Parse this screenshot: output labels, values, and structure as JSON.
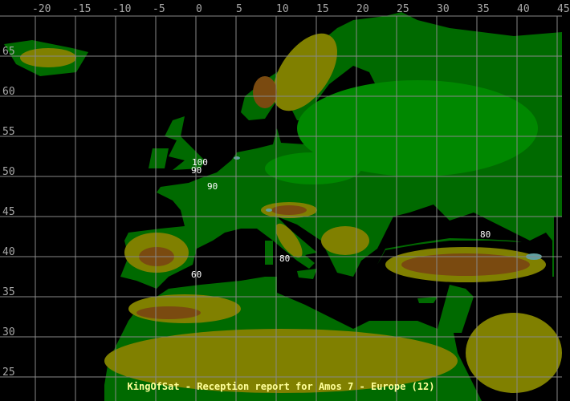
{
  "title": "KingOfSat - Reception report for Amos 7 - Europe (12)",
  "longitude_labels": [
    "-20",
    "-15",
    "-10",
    "-5",
    "0",
    "5",
    "10",
    "15",
    "20",
    "25",
    "30",
    "35",
    "40",
    "45"
  ],
  "latitude_labels": [
    "65",
    "60",
    "55",
    "50",
    "45",
    "40",
    "35",
    "30",
    "25"
  ],
  "contour_labels": [
    {
      "value": "100",
      "near": "London"
    },
    {
      "value": "90",
      "near": "English Channel"
    },
    {
      "value": "90",
      "near": "Northern France"
    },
    {
      "value": "80",
      "near": "Black Sea"
    },
    {
      "value": "80",
      "near": "Sardinia"
    },
    {
      "value": "60",
      "near": "Southern Spain"
    }
  ],
  "colors": {
    "sea": "#000000",
    "lowland": "#006a00",
    "plain": "#008800",
    "hills": "#808000",
    "mountains": "#7a4a10",
    "peaks": "#60a0a0",
    "grid": "#888888",
    "title": "#ffff99"
  }
}
